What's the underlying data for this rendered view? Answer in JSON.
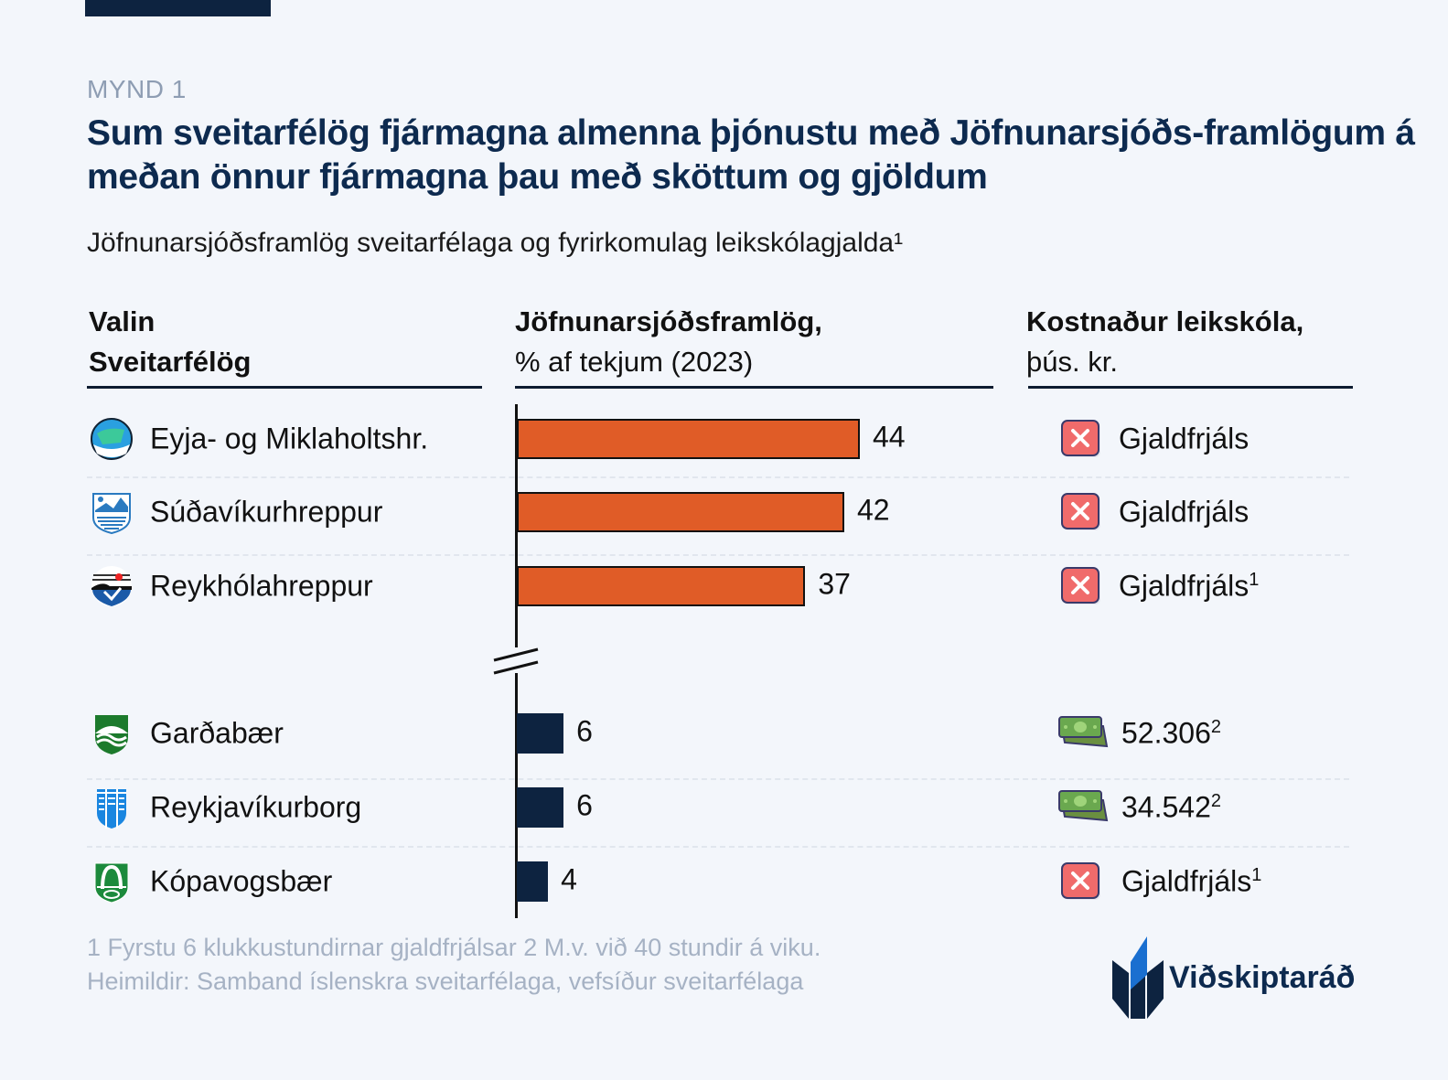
{
  "header": {
    "kicker": "MYND 1",
    "title": "Sum sveitarfélög fjármagna almenna þjónustu með Jöfnunarsjóðs-framlögum á meðan önnur fjármagna þau með sköttum og gjöldum",
    "subtitle": "Jöfnunarsjóðsframlög sveitarfélaga og fyrirkomulag leikskólagjalda¹"
  },
  "columns": {
    "col1_line1": "Valin",
    "col1_line2": "Sveitarfélög",
    "col2_line1": "Jöfnunarsjóðsframlög,",
    "col2_line2": "% af tekjum (2023)",
    "col3_line1": "Kostnaður leikskóla,",
    "col3_line2": "þús. kr."
  },
  "chart_data": {
    "type": "bar",
    "orientation": "horizontal",
    "axis_break": "between 37 and 6",
    "categories": [
      "Eyja- og Miklaholtshr.",
      "Súðavíkurhreppur",
      "Reykhólahreppur",
      "Garðabær",
      "Reykjavíkurborg",
      "Kópavogsbær"
    ],
    "values": [
      44,
      42,
      37,
      6,
      6,
      4
    ],
    "value_labels": [
      "44",
      "42",
      "37",
      "6",
      "6",
      "4"
    ],
    "bar_colors": [
      "#e05c27",
      "#e05c27",
      "#e05c27",
      "#0d2340",
      "#0d2340",
      "#0d2340"
    ],
    "title": "Jöfnunarsjóðsframlög, % af tekjum (2023)"
  },
  "rows": [
    {
      "name": "Eyja- og Miklaholtshr.",
      "cost": "Gjaldfrjáls",
      "note": "",
      "icon": "x-icon"
    },
    {
      "name": "Súðavíkurhreppur",
      "cost": "Gjaldfrjáls",
      "note": "",
      "icon": "x-icon"
    },
    {
      "name": "Reykhólahreppur",
      "cost": "Gjaldfrjáls",
      "note": "1",
      "icon": "x-icon"
    },
    {
      "name": "Garðabær",
      "cost": "52.306",
      "note": "2",
      "icon": "money-icon"
    },
    {
      "name": "Reykjavíkurborg",
      "cost": "34.542",
      "note": "2",
      "icon": "money-icon"
    },
    {
      "name": "Kópavogsbær",
      "cost": "Gjaldfrjáls",
      "note": "1",
      "icon": "x-icon"
    }
  ],
  "footer": {
    "note": "1 Fyrstu 6 klukkustundirnar gjaldfrjálsar 2 M.v. við 40 stundir á viku.",
    "source": "Heimildir: Samband íslenskra sveitarfélaga, vefsíður sveitarfélaga",
    "brand": "Viðskiptaráð"
  },
  "colors": {
    "accent": "#e05c27",
    "dark": "#0d2340",
    "title": "#0d2a4f"
  }
}
